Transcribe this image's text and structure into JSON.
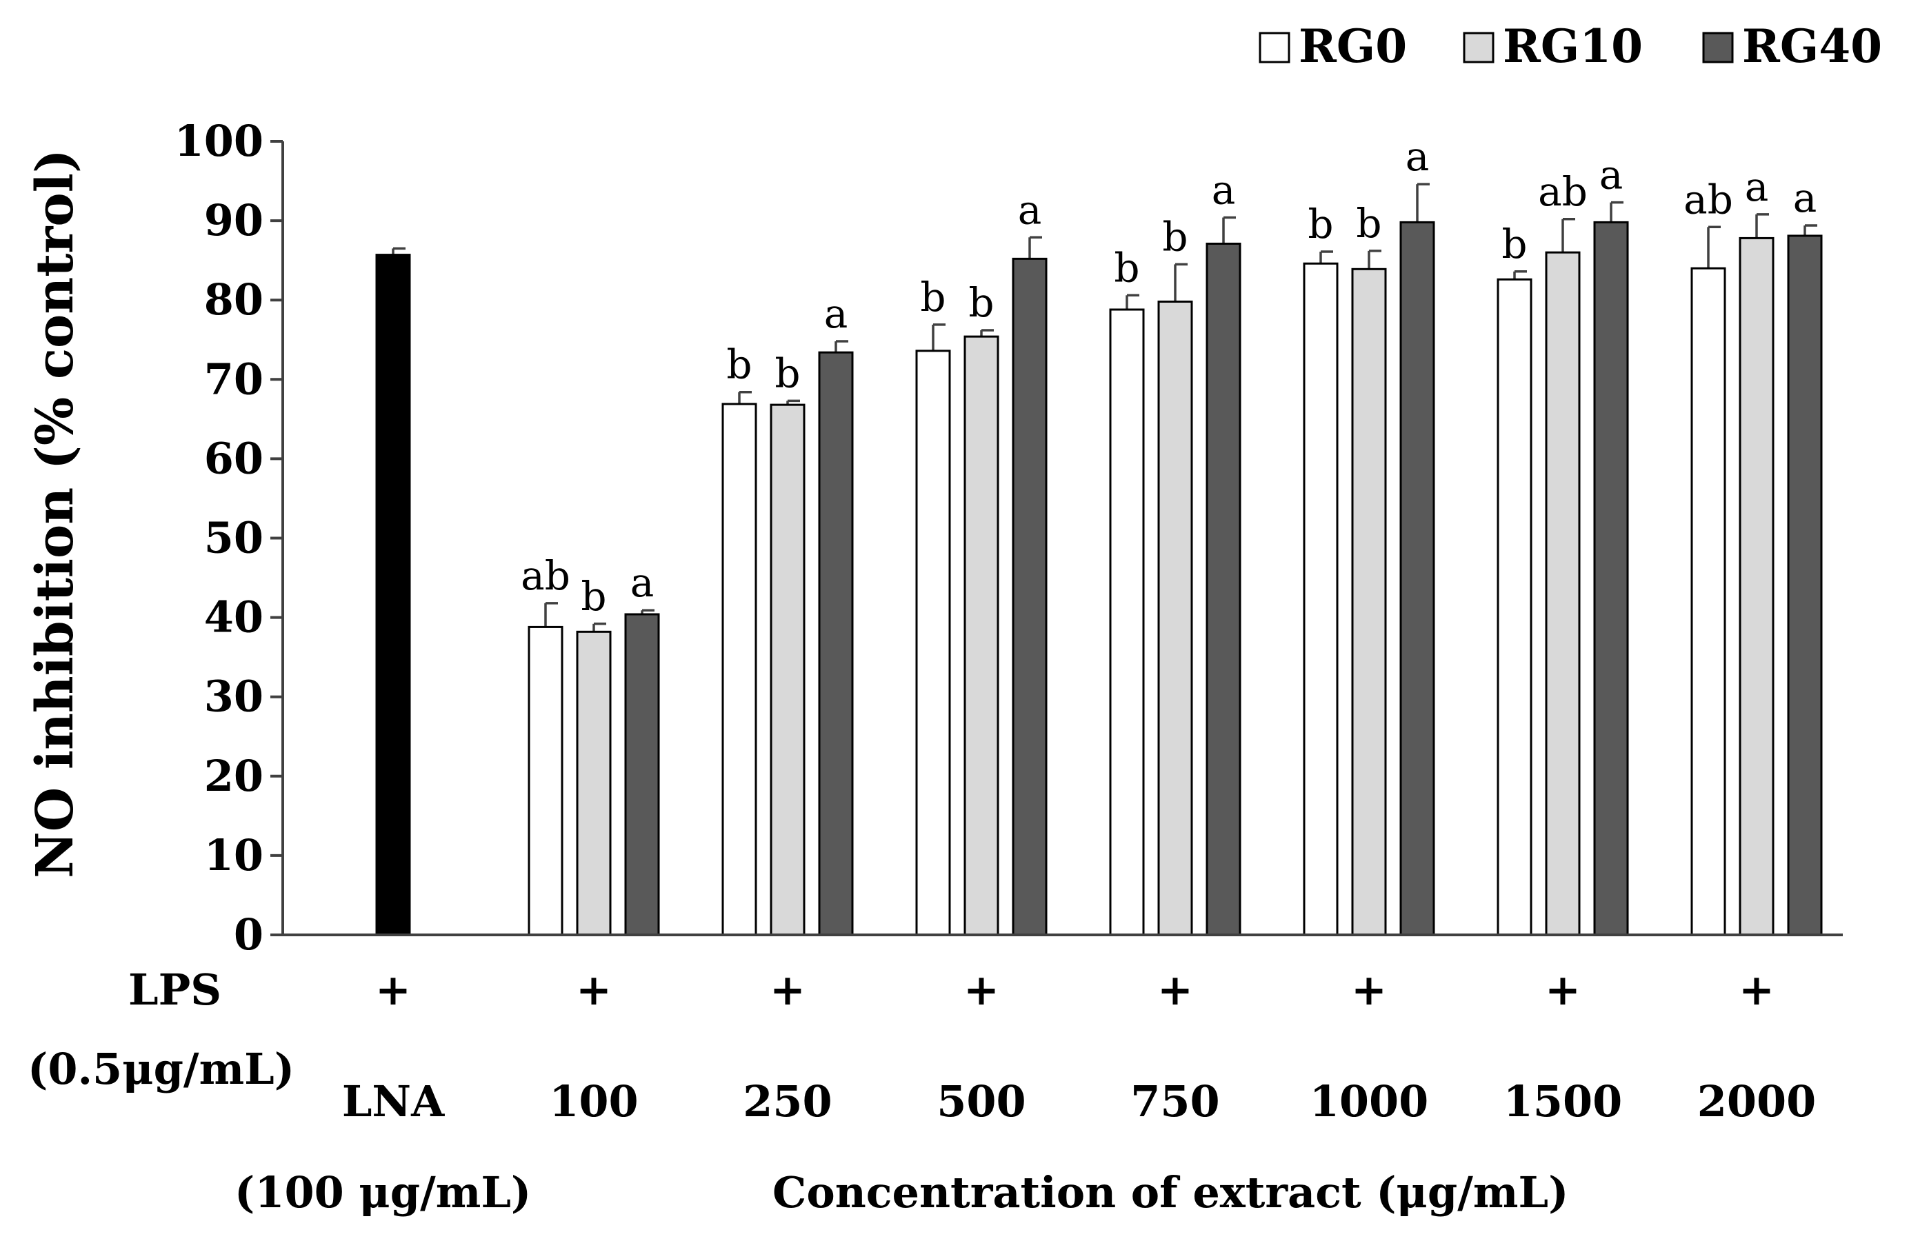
{
  "chart_data": {
    "type": "bar",
    "ylabel": "NO inhibition (% control)",
    "ylim": [
      0,
      100
    ],
    "yticks": [
      "0",
      "10",
      "20",
      "30",
      "40",
      "50",
      "60",
      "70",
      "80",
      "90",
      "100"
    ],
    "grid": false,
    "legend_position": "top-right",
    "row_labels": {
      "lps": "LPS",
      "lps_conc": "(0.5μg/mL)",
      "lna_conc": "(100 μg/mL)",
      "xlabel": "Concentration of extract (μg/mL)"
    },
    "lps_marks": [
      "+",
      "+",
      "+",
      "+",
      "+",
      "+",
      "+",
      "+"
    ],
    "control": {
      "category": "LNA",
      "value": 85.7,
      "error": 0.8,
      "color": "#000000"
    },
    "categories": [
      "100",
      "250",
      "500",
      "750",
      "1000",
      "1500",
      "2000"
    ],
    "series": [
      {
        "name": "RG0",
        "color": "#ffffff",
        "values": [
          38.8,
          66.9,
          73.6,
          78.8,
          84.6,
          82.6,
          84.0
        ],
        "errors": [
          3.0,
          1.5,
          3.3,
          1.8,
          1.5,
          1.0,
          5.2
        ],
        "letters": [
          "ab",
          "b",
          "b",
          "b",
          "b",
          "b",
          "ab"
        ]
      },
      {
        "name": "RG10",
        "color": "#d9d9d9",
        "values": [
          38.2,
          66.8,
          75.4,
          79.8,
          83.9,
          86.0,
          87.8
        ],
        "errors": [
          1.0,
          0.5,
          0.8,
          4.7,
          2.3,
          4.2,
          3.0
        ],
        "letters": [
          "b",
          "b",
          "b",
          "b",
          "b",
          "ab",
          "a"
        ]
      },
      {
        "name": "RG40",
        "color": "#595959",
        "values": [
          40.4,
          73.4,
          85.2,
          87.1,
          89.8,
          89.8,
          88.1
        ],
        "errors": [
          0.5,
          1.4,
          2.7,
          3.3,
          4.8,
          2.5,
          1.3
        ],
        "letters": [
          "a",
          "a",
          "a",
          "a",
          "a",
          "a",
          "a"
        ]
      }
    ]
  }
}
